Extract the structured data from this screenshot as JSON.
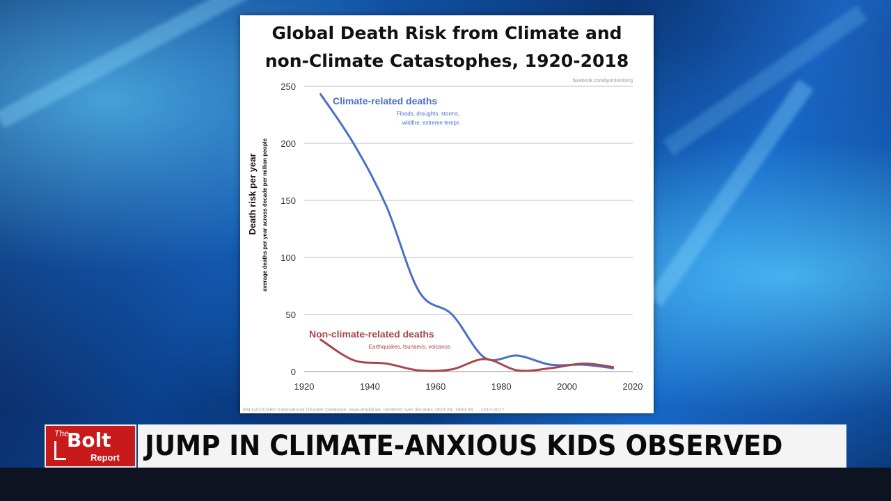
{
  "chart_data": {
    "type": "line",
    "title": "Global Death Risk from Climate and\nnon-Climate Catastophes, 1920-2018",
    "watermark": "facebook.com/bjornlomborg",
    "ylabel": "Death risk per year",
    "ylabel_sub": "average deaths per year across decade per million people",
    "source_note": "EM-DAT/CRED International Disaster Database, www.emdat.be, centered over decades 1920-29, 1930-39, ... 2010-2017",
    "xlim": [
      1920,
      2020
    ],
    "ylim": [
      0,
      250
    ],
    "x_ticks": [
      1920,
      1940,
      1960,
      1980,
      2000,
      2020
    ],
    "y_ticks": [
      0,
      50,
      100,
      150,
      200,
      250
    ],
    "grid": true,
    "series": [
      {
        "name": "Climate-related deaths",
        "sublabel_1": "Floods, droughts, storms,",
        "sublabel_2": "wildfire, extreme temps",
        "color": "#4a6fc8",
        "x": [
          1925,
          1935,
          1945,
          1955,
          1965,
          1975,
          1985,
          1995,
          2005,
          2014
        ],
        "y": [
          243,
          200,
          145,
          70,
          50,
          12,
          14,
          6,
          6,
          3
        ]
      },
      {
        "name": "Non-climate-related deaths",
        "sublabel_1": "Earthquakes, tsunamis, volcanos",
        "color": "#a8464e",
        "x": [
          1925,
          1935,
          1945,
          1955,
          1965,
          1975,
          1985,
          1995,
          2005,
          2014
        ],
        "y": [
          28,
          10,
          7,
          1,
          2,
          11,
          1,
          3,
          7,
          4
        ]
      }
    ]
  },
  "lower_third": {
    "logo_the": "The",
    "logo_bolt": "Bolt",
    "logo_report": "Report",
    "headline": "JUMP IN CLIMATE-ANXIOUS KIDS OBSERVED"
  }
}
